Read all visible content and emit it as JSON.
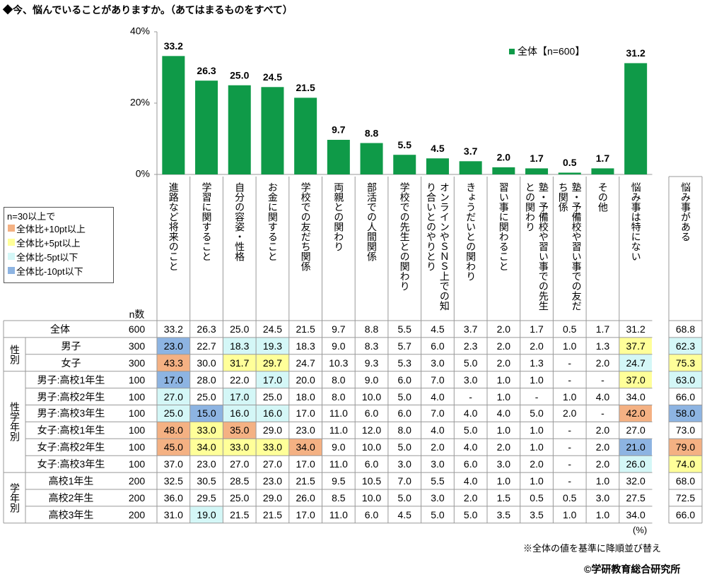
{
  "title": "◆今、悩んでいることがありますか。（あてはまるものをすべて）",
  "chart_data": {
    "type": "bar",
    "categories": [
      "進路など将来のこと",
      "学習に関すること",
      "自分の容姿・性格",
      "お金に関すること",
      "学校での友だち関係",
      "両親との関わり",
      "部活での人間関係",
      "学校での先生との関わり",
      "オンラインやＳＮＳ上での知り合いとのやりとり",
      "きょうだいとの関わり",
      "習い事に関わること",
      "塾・予備校や習い事での先生との関わり",
      "塾・予備校や習い事での友だち関係",
      "その他",
      "悩み事は特にない"
    ],
    "series": [
      {
        "name": "全体【n=600】",
        "color": "#0f9a48",
        "values": [
          33.2,
          26.3,
          25.0,
          24.5,
          21.5,
          9.7,
          8.8,
          5.5,
          4.5,
          3.7,
          2.0,
          1.7,
          0.5,
          1.7,
          31.2
        ],
        "value_labels": [
          "33.2",
          "26.3",
          "25.0",
          "24.5",
          "21.5",
          "9.7",
          "8.8",
          "5.5",
          "4.5",
          "3.7",
          "2.0",
          "1.7",
          "0.5",
          "1.7",
          "31.2"
        ]
      }
    ],
    "ylim": [
      0,
      40
    ],
    "yticks": [
      {
        "value": 0,
        "label": "0%"
      },
      {
        "value": 20,
        "label": "20%"
      },
      {
        "value": 40,
        "label": "40%"
      }
    ],
    "grid": false,
    "legend": "upper right"
  },
  "table": {
    "extra_header": "悩み事がある",
    "n_header": "n数",
    "legend": {
      "title": "n=30以上で",
      "items": [
        {
          "label": "全体比+10pt以上",
          "color": "#f4b183"
        },
        {
          "label": "全体比+5pt以上",
          "color": "#ffff99"
        },
        {
          "label": "全体比-5pt以下",
          "color": "#d4f7f7"
        },
        {
          "label": "全体比-10pt以下",
          "color": "#8db4e2"
        }
      ]
    },
    "total": {
      "label": "全体",
      "n": "600",
      "values": [
        "33.2",
        "26.3",
        "25.0",
        "24.5",
        "21.5",
        "9.7",
        "8.8",
        "5.5",
        "4.5",
        "3.7",
        "2.0",
        "1.7",
        "0.5",
        "1.7",
        "31.2",
        "68.8"
      ],
      "fills": [
        null,
        null,
        null,
        null,
        null,
        null,
        null,
        null,
        null,
        null,
        null,
        null,
        null,
        null,
        null,
        null
      ]
    },
    "groups": [
      {
        "label": "性別",
        "rows": [
          {
            "label": "男子",
            "n": "300",
            "values": [
              "23.0",
              "22.7",
              "18.3",
              "19.3",
              "18.3",
              "9.0",
              "8.3",
              "5.7",
              "6.0",
              "2.3",
              "2.0",
              "2.0",
              "1.0",
              "1.3",
              "37.7",
              "62.3"
            ],
            "fills": [
              "#8db4e2",
              null,
              "#d4f7f7",
              "#d4f7f7",
              null,
              null,
              null,
              null,
              null,
              null,
              null,
              null,
              null,
              null,
              "#ffff99",
              "#d4f7f7"
            ]
          },
          {
            "label": "女子",
            "n": "300",
            "values": [
              "43.3",
              "30.0",
              "31.7",
              "29.7",
              "24.7",
              "10.3",
              "9.3",
              "5.3",
              "3.0",
              "5.0",
              "2.0",
              "1.3",
              "-",
              "2.0",
              "24.7",
              "75.3"
            ],
            "fills": [
              "#f4b183",
              null,
              "#ffff99",
              "#ffff99",
              null,
              null,
              null,
              null,
              null,
              null,
              null,
              null,
              null,
              null,
              "#d4f7f7",
              "#ffff99"
            ]
          }
        ]
      },
      {
        "label": "性学年別",
        "rows": [
          {
            "label": "男子:高校1年生",
            "n": "100",
            "values": [
              "17.0",
              "28.0",
              "22.0",
              "17.0",
              "20.0",
              "8.0",
              "9.0",
              "6.0",
              "7.0",
              "3.0",
              "1.0",
              "1.0",
              "-",
              "-",
              "37.0",
              "63.0"
            ],
            "fills": [
              "#8db4e2",
              null,
              null,
              "#d4f7f7",
              null,
              null,
              null,
              null,
              null,
              null,
              null,
              null,
              null,
              null,
              "#ffff99",
              "#d4f7f7"
            ]
          },
          {
            "label": "男子:高校2年生",
            "n": "100",
            "values": [
              "27.0",
              "25.0",
              "17.0",
              "25.0",
              "18.0",
              "8.0",
              "10.0",
              "5.0",
              "4.0",
              "-",
              "1.0",
              "-",
              "1.0",
              "4.0",
              "34.0",
              "66.0"
            ],
            "fills": [
              "#d4f7f7",
              null,
              "#d4f7f7",
              null,
              null,
              null,
              null,
              null,
              null,
              null,
              null,
              null,
              null,
              null,
              null,
              null
            ]
          },
          {
            "label": "男子:高校3年生",
            "n": "100",
            "values": [
              "25.0",
              "15.0",
              "16.0",
              "16.0",
              "17.0",
              "11.0",
              "6.0",
              "6.0",
              "7.0",
              "4.0",
              "4.0",
              "5.0",
              "2.0",
              "-",
              "42.0",
              "58.0"
            ],
            "fills": [
              "#d4f7f7",
              "#8db4e2",
              "#d4f7f7",
              "#d4f7f7",
              null,
              null,
              null,
              null,
              null,
              null,
              null,
              null,
              null,
              null,
              "#f4b183",
              "#8db4e2"
            ]
          },
          {
            "label": "女子:高校1年生",
            "n": "100",
            "values": [
              "48.0",
              "33.0",
              "35.0",
              "29.0",
              "23.0",
              "11.0",
              "12.0",
              "8.0",
              "4.0",
              "5.0",
              "1.0",
              "1.0",
              "-",
              "2.0",
              "27.0",
              "73.0"
            ],
            "fills": [
              "#f4b183",
              "#ffff99",
              "#f4b183",
              null,
              null,
              null,
              null,
              null,
              null,
              null,
              null,
              null,
              null,
              null,
              null,
              null
            ]
          },
          {
            "label": "女子:高校2年生",
            "n": "100",
            "values": [
              "45.0",
              "34.0",
              "33.0",
              "33.0",
              "34.0",
              "9.0",
              "10.0",
              "5.0",
              "2.0",
              "4.0",
              "2.0",
              "1.0",
              "-",
              "2.0",
              "21.0",
              "79.0"
            ],
            "fills": [
              "#f4b183",
              "#ffff99",
              "#ffff99",
              "#ffff99",
              "#f4b183",
              null,
              null,
              null,
              null,
              null,
              null,
              null,
              null,
              null,
              "#8db4e2",
              "#f4b183"
            ]
          },
          {
            "label": "女子:高校3年生",
            "n": "100",
            "values": [
              "37.0",
              "23.0",
              "27.0",
              "27.0",
              "17.0",
              "11.0",
              "6.0",
              "3.0",
              "3.0",
              "6.0",
              "3.0",
              "2.0",
              "-",
              "2.0",
              "26.0",
              "74.0"
            ],
            "fills": [
              null,
              null,
              null,
              null,
              null,
              null,
              null,
              null,
              null,
              null,
              null,
              null,
              null,
              null,
              "#d4f7f7",
              "#ffff99"
            ]
          }
        ]
      },
      {
        "label": "学年別",
        "rows": [
          {
            "label": "高校1年生",
            "n": "200",
            "values": [
              "32.5",
              "30.5",
              "28.5",
              "23.0",
              "21.5",
              "9.5",
              "10.5",
              "7.0",
              "5.5",
              "4.0",
              "1.0",
              "1.0",
              "-",
              "1.0",
              "32.0",
              "68.0"
            ],
            "fills": [
              null,
              null,
              null,
              null,
              null,
              null,
              null,
              null,
              null,
              null,
              null,
              null,
              null,
              null,
              null,
              null
            ]
          },
          {
            "label": "高校2年生",
            "n": "200",
            "values": [
              "36.0",
              "29.5",
              "25.0",
              "29.0",
              "26.0",
              "8.5",
              "10.0",
              "5.0",
              "3.0",
              "2.0",
              "1.5",
              "0.5",
              "0.5",
              "3.0",
              "27.5",
              "72.5"
            ],
            "fills": [
              null,
              null,
              null,
              null,
              null,
              null,
              null,
              null,
              null,
              null,
              null,
              null,
              null,
              null,
              null,
              null
            ]
          },
          {
            "label": "高校3年生",
            "n": "200",
            "values": [
              "31.0",
              "19.0",
              "21.5",
              "21.5",
              "17.0",
              "11.0",
              "6.0",
              "4.5",
              "5.0",
              "5.0",
              "3.5",
              "3.5",
              "1.0",
              "1.0",
              "34.0",
              "66.0"
            ],
            "fills": [
              null,
              "#d4f7f7",
              null,
              null,
              null,
              null,
              null,
              null,
              null,
              null,
              null,
              null,
              null,
              null,
              null,
              null
            ]
          }
        ]
      }
    ]
  },
  "notes": {
    "unit": "(%)",
    "sort": "※全体の値を基準に降順並び替え",
    "copyright": "©学研教育総合研究所"
  }
}
